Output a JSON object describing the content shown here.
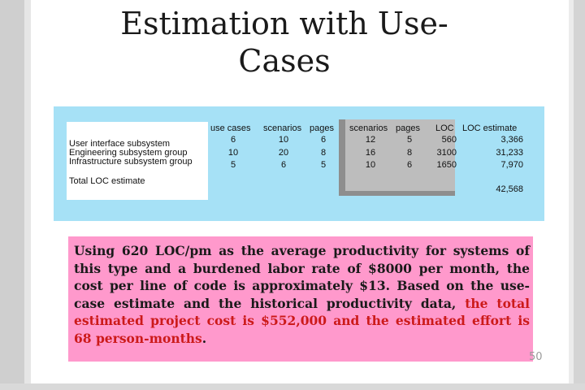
{
  "slide": {
    "title_line1": "Estimation with Use-",
    "title_line2": "Cases",
    "page_number": "50"
  },
  "table": {
    "headers": [
      "use cases",
      "scenarios",
      "pages",
      "scenarios",
      "pages",
      "LOC",
      "LOC estimate"
    ],
    "rows": [
      {
        "label": "User interface subsystem",
        "values": [
          "6",
          "10",
          "6",
          "12",
          "5",
          "560",
          "3,366"
        ]
      },
      {
        "label": "Engineering subsystem group",
        "values": [
          "10",
          "20",
          "8",
          "16",
          "8",
          "3100",
          "31,233"
        ]
      },
      {
        "label": "Infrastructure subsystem group",
        "values": [
          "5",
          "6",
          "5",
          "10",
          "6",
          "1650",
          "7,970"
        ]
      }
    ],
    "total_label": "Total LOC estimate",
    "total_value": "42,568"
  },
  "description": {
    "text_plain": "Using 620 LOC/pm as the average productivity for systems of this type and a burdened labor rate of $8000 per month, the cost per line of code is approximately $13. Based on the use-case estimate and the historical productivity data, ",
    "text_highlight": "the total estimated project cost is $552,000 and the estimated effort is 68 person-months",
    "text_end": ".",
    "highlight_color": "#cc1a1a",
    "panel_color": "#ff99cc"
  },
  "colors": {
    "table_panel": "#a6e1f6",
    "gray_block": "#bdbdbd"
  }
}
